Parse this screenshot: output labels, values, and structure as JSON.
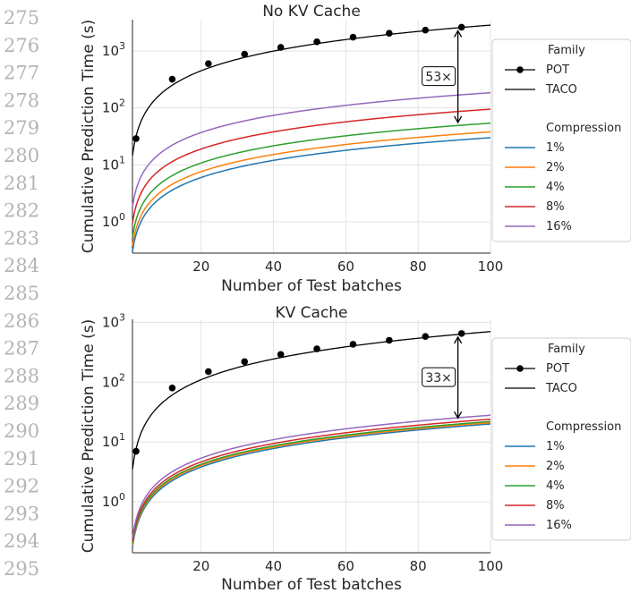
{
  "line_numbers": [
    "275",
    "276",
    "277",
    "278",
    "279",
    "280",
    "281",
    "282",
    "283",
    "284",
    "285",
    "286",
    "287",
    "288",
    "289",
    "290",
    "291",
    "292",
    "293",
    "294",
    "295"
  ],
  "chart_data": [
    {
      "type": "line",
      "title": "No KV Cache",
      "xlabel": "Number of Test batches",
      "ylabel": "Cumulative Prediction Time (s)",
      "xlim": [
        1,
        100
      ],
      "ylim_log10": [
        -0.55,
        3.55
      ],
      "yscale": "log",
      "grid": true,
      "legend_placement": "right",
      "x_ticks": [
        20,
        40,
        60,
        80,
        100
      ],
      "x_tick_labels": [
        "20",
        "40",
        "60",
        "80",
        "100"
      ],
      "y_ticks": [
        1,
        10,
        100,
        1000
      ],
      "y_tick_labels": [
        "10^0",
        "10^1",
        "10^2",
        "10^3"
      ],
      "pot": {
        "name": "POT",
        "x": [
          2,
          12,
          22,
          32,
          42,
          52,
          62,
          72,
          82,
          92
        ],
        "values": [
          29,
          320,
          600,
          880,
          1160,
          1450,
          1750,
          2050,
          2330,
          2620
        ]
      },
      "taco": {
        "name": "TACO",
        "value_at_1": 14.5,
        "value_at_100": 2850
      },
      "compression": [
        {
          "name": "1%",
          "color": "#1f77b4",
          "value_at_1": 0.3,
          "value_at_100": 30
        },
        {
          "name": "2%",
          "color": "#ff7f0e",
          "value_at_1": 0.38,
          "value_at_100": 38
        },
        {
          "name": "4%",
          "color": "#2ca02c",
          "value_at_1": 0.54,
          "value_at_100": 54
        },
        {
          "name": "8%",
          "color": "#d62728",
          "value_at_1": 0.95,
          "value_at_100": 95
        },
        {
          "name": "16%",
          "color": "#9467bd",
          "value_at_1": 1.85,
          "value_at_100": 185
        }
      ],
      "annotation": {
        "text": "53×",
        "x": 91,
        "y_top": 2620,
        "y_bottom": 48
      },
      "legend": {
        "family_title": "Family",
        "compression_title": "Compression"
      }
    },
    {
      "type": "line",
      "title": "KV Cache",
      "xlabel": "Number of Test batches",
      "ylabel": "Cumulative Prediction Time (s)",
      "xlim": [
        1,
        100
      ],
      "ylim_log10": [
        -0.85,
        3.05
      ],
      "yscale": "log",
      "grid": true,
      "legend_placement": "right",
      "x_ticks": [
        20,
        40,
        60,
        80,
        100
      ],
      "x_tick_labels": [
        "20",
        "40",
        "60",
        "80",
        "100"
      ],
      "y_ticks": [
        1,
        10,
        100,
        1000
      ],
      "y_tick_labels": [
        "10^0",
        "10^1",
        "10^2",
        "10^3"
      ],
      "pot": {
        "name": "POT",
        "x": [
          2,
          12,
          22,
          32,
          42,
          52,
          62,
          72,
          82,
          92
        ],
        "values": [
          7,
          80,
          150,
          220,
          290,
          360,
          430,
          500,
          580,
          650
        ]
      },
      "taco": {
        "name": "TACO",
        "value_at_1": 3.5,
        "value_at_100": 700
      },
      "compression": [
        {
          "name": "1%",
          "color": "#1f77b4",
          "value_at_1": 0.175,
          "value_at_100": 20
        },
        {
          "name": "2%",
          "color": "#ff7f0e",
          "value_at_1": 0.19,
          "value_at_100": 21
        },
        {
          "name": "4%",
          "color": "#2ca02c",
          "value_at_1": 0.2,
          "value_at_100": 22
        },
        {
          "name": "8%",
          "color": "#d62728",
          "value_at_1": 0.22,
          "value_at_100": 24
        },
        {
          "name": "16%",
          "color": "#9467bd",
          "value_at_1": 0.25,
          "value_at_100": 28
        }
      ],
      "annotation": {
        "text": "33×",
        "x": 91,
        "y_top": 650,
        "y_bottom": 22
      },
      "legend": {
        "family_title": "Family",
        "compression_title": "Compression"
      }
    }
  ]
}
